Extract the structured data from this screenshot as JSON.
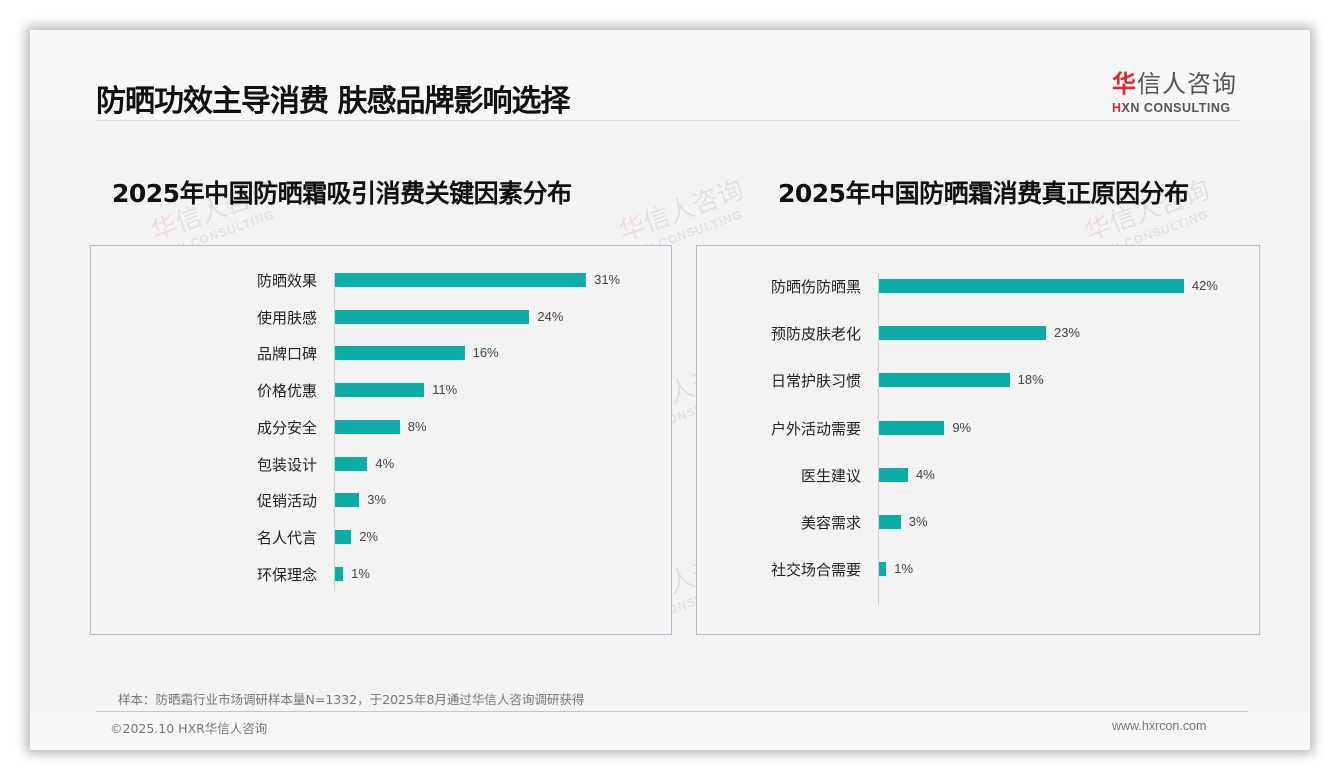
{
  "header": {
    "title": "防晒功效主导消费 肤感品牌影响选择",
    "logo_cn_red": "华",
    "logo_cn_rest": "信人咨询",
    "logo_en_mark": "H",
    "logo_en_rest": "XN CONSULTING"
  },
  "watermark": {
    "cn_red": "华",
    "cn_rest": "信人咨询",
    "en": "HXN CONSULTING"
  },
  "colors": {
    "bar": "#0bada6",
    "brand_red": "#d9272e",
    "panel_border": "#aebfd4"
  },
  "chart_data": [
    {
      "type": "bar",
      "orientation": "horizontal",
      "title": "2025年中国防晒霜吸引消费关键因素分布",
      "categories": [
        "防晒效果",
        "使用肤感",
        "品牌口碑",
        "价格优惠",
        "成分安全",
        "包装设计",
        "促销活动",
        "名人代言",
        "环保理念"
      ],
      "values": [
        31,
        24,
        16,
        11,
        8,
        4,
        3,
        2,
        1
      ],
      "labels": [
        "31%",
        "24%",
        "16%",
        "11%",
        "8%",
        "4%",
        "3%",
        "2%",
        "1%"
      ],
      "unit": "%",
      "xlabel": "",
      "ylabel": "",
      "grid": false,
      "legend": false
    },
    {
      "type": "bar",
      "orientation": "horizontal",
      "title": "2025年中国防晒霜消费真正原因分布",
      "categories": [
        "防晒伤防晒黑",
        "预防皮肤老化",
        "日常护肤习惯",
        "户外活动需要",
        "医生建议",
        "美容需求",
        "社交场合需要"
      ],
      "values": [
        42,
        23,
        18,
        9,
        4,
        3,
        1
      ],
      "labels": [
        "42%",
        "23%",
        "18%",
        "9%",
        "4%",
        "3%",
        "1%"
      ],
      "unit": "%",
      "xlabel": "",
      "ylabel": "",
      "grid": false,
      "legend": false
    }
  ],
  "footer": {
    "note": "样本：防晒霜行业市场调研样本量N=1332，于2025年8月通过华信人咨询调研获得",
    "copyright": "©2025.10 HXR华信人咨询",
    "website": "www.hxrcon.com"
  }
}
